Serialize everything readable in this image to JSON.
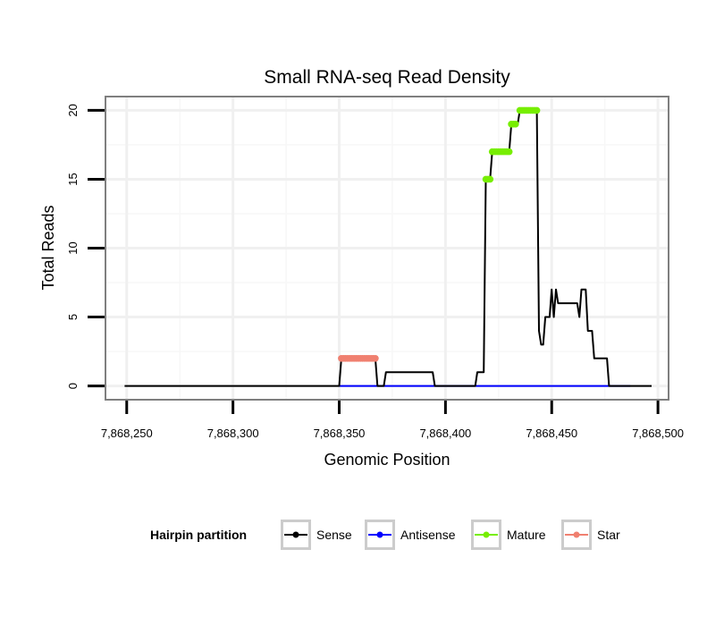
{
  "chart_data": {
    "type": "line",
    "title": "Small RNA-seq Read Density",
    "xlabel": "Genomic Position",
    "ylabel": "Total Reads",
    "xlim": [
      7868240,
      7868505
    ],
    "ylim": [
      -1,
      21
    ],
    "x_ticks": [
      7868250,
      7868300,
      7868350,
      7868400,
      7868450,
      7868500
    ],
    "x_tick_labels": [
      "7,868,250",
      "7,868,300",
      "7,868,350",
      "7,868,400",
      "7,868,450",
      "7,868,500"
    ],
    "y_ticks": [
      0,
      5,
      10,
      15,
      20
    ],
    "y_tick_labels": [
      "0",
      "5",
      "10",
      "15",
      "20"
    ],
    "grid": true,
    "legend": {
      "title": "Hairpin partition",
      "position": "bottom",
      "entries": [
        {
          "name": "Sense",
          "color": "#000000"
        },
        {
          "name": "Antisense",
          "color": "#0000ff"
        },
        {
          "name": "Mature",
          "color": "#77ee00"
        },
        {
          "name": "Star",
          "color": "#f08070"
        }
      ]
    },
    "series": [
      {
        "name": "Sense",
        "style": "line",
        "color": "#000000",
        "x": [
          7868249,
          7868350,
          7868351,
          7868367,
          7868368,
          7868371,
          7868372,
          7868394,
          7868395,
          7868414,
          7868415,
          7868418,
          7868419,
          7868421,
          7868422,
          7868430,
          7868431,
          7868434,
          7868435,
          7868443,
          7868444,
          7868445,
          7868446,
          7868447,
          7868448,
          7868449,
          7868450,
          7868451,
          7868452,
          7868453,
          7868454,
          7868455,
          7868456,
          7868457,
          7868458,
          7868462,
          7868463,
          7868464,
          7868465,
          7868466,
          7868467,
          7868468,
          7868469,
          7868470,
          7868471,
          7868472,
          7868476,
          7868477,
          7868487,
          7868488,
          7868497
        ],
        "y": [
          0,
          0,
          2,
          2,
          0,
          0,
          1,
          1,
          0,
          0,
          1,
          1,
          15,
          15,
          17,
          17,
          19,
          19,
          20,
          20,
          4,
          3,
          3,
          5,
          5,
          5,
          7,
          5,
          7,
          6,
          6,
          6,
          6,
          6,
          6,
          6,
          5,
          7,
          7,
          7,
          4,
          4,
          4,
          2,
          2,
          2,
          2,
          0,
          0,
          0,
          0
        ]
      },
      {
        "name": "Antisense",
        "style": "line",
        "color": "#0000ff",
        "x": [
          7868350,
          7868487
        ],
        "y": [
          0,
          0
        ]
      },
      {
        "name": "Mature",
        "style": "points",
        "color": "#77ee00",
        "x": [
          7868419,
          7868420,
          7868421,
          7868422,
          7868423,
          7868424,
          7868425,
          7868426,
          7868427,
          7868428,
          7868429,
          7868430,
          7868431,
          7868432,
          7868433,
          7868435,
          7868436,
          7868437,
          7868438,
          7868439,
          7868440,
          7868441,
          7868442,
          7868443
        ],
        "y": [
          15,
          15,
          15,
          17,
          17,
          17,
          17,
          17,
          17,
          17,
          17,
          17,
          19,
          19,
          19,
          20,
          20,
          20,
          20,
          20,
          20,
          20,
          20,
          20
        ]
      },
      {
        "name": "Star",
        "style": "points",
        "color": "#f08070",
        "x": [
          7868351,
          7868352,
          7868353,
          7868354,
          7868355,
          7868356,
          7868357,
          7868358,
          7868359,
          7868360,
          7868361,
          7868362,
          7868363,
          7868364,
          7868365,
          7868366,
          7868367
        ],
        "y": [
          2,
          2,
          2,
          2,
          2,
          2,
          2,
          2,
          2,
          2,
          2,
          2,
          2,
          2,
          2,
          2,
          2
        ]
      }
    ]
  }
}
